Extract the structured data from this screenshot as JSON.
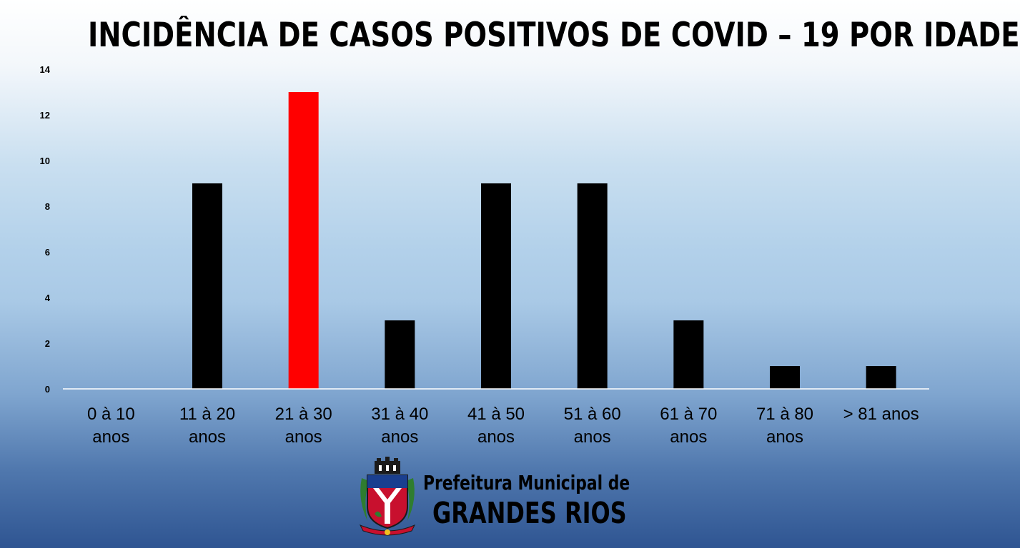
{
  "chart_data": {
    "type": "bar",
    "title": "INCIDÊNCIA DE CASOS POSITIVOS DE COVID – 19 POR IDADE",
    "categories": [
      [
        "0 à 10",
        "anos"
      ],
      [
        "11 à 20",
        "anos"
      ],
      [
        "21 à 30",
        "anos"
      ],
      [
        "31 à 40",
        "anos"
      ],
      [
        "41 à 50",
        "anos"
      ],
      [
        "51 à 60",
        "anos"
      ],
      [
        "61 à 70",
        "anos"
      ],
      [
        "71 à 80",
        "anos"
      ],
      [
        "> 81 anos"
      ]
    ],
    "values": [
      0,
      9,
      13,
      3,
      9,
      9,
      3,
      1,
      1
    ],
    "colors": [
      "#000000",
      "#000000",
      "#ff0000",
      "#000000",
      "#000000",
      "#000000",
      "#000000",
      "#000000",
      "#000000"
    ],
    "ylim": [
      0,
      14
    ],
    "yticks": [
      0,
      2,
      4,
      6,
      8,
      10,
      12,
      14
    ],
    "grid": false,
    "xlabel": "",
    "ylabel": ""
  },
  "brand": {
    "line1": "Prefeitura Municipal de",
    "line2": "GRANDES RIOS",
    "logo_icon": "municipal-coat-of-arms-icon"
  }
}
